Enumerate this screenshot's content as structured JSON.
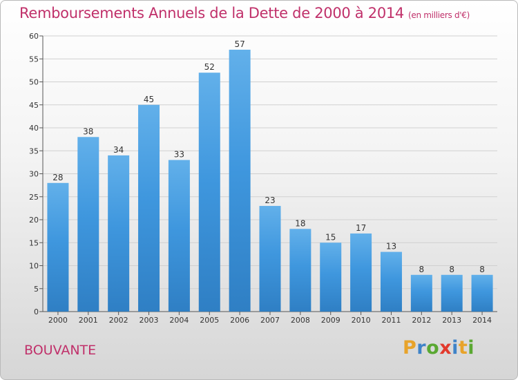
{
  "chart_data": {
    "type": "bar",
    "title": "Remboursements Annuels de la Dette de 2000 à 2014",
    "unit": "(en milliers d'€)",
    "categories": [
      "2000",
      "2001",
      "2002",
      "2003",
      "2004",
      "2005",
      "2006",
      "2007",
      "2008",
      "2009",
      "2010",
      "2011",
      "2012",
      "2013",
      "2014"
    ],
    "values": [
      28,
      38,
      34,
      45,
      33,
      52,
      57,
      23,
      18,
      15,
      17,
      13,
      8,
      8,
      8
    ],
    "ylim": [
      0,
      60
    ],
    "yticks": [
      0,
      5,
      10,
      15,
      20,
      25,
      30,
      35,
      40,
      45,
      50,
      55,
      60
    ],
    "grid": true,
    "bar_color": "#3f97de",
    "bar_color_light": "#62b0ea",
    "bar_color_dark": "#2f7fc4",
    "grid_color": "#d0d0d0"
  },
  "commune": "BOUVANTE",
  "logo": {
    "letters": [
      "P",
      "r",
      "o",
      "x",
      "i",
      "t",
      "i"
    ],
    "colors": [
      "#e8a32a",
      "#3f83c8",
      "#5aa832",
      "#e23a2d",
      "#3f83c8",
      "#e8a32a",
      "#5aa832"
    ]
  }
}
